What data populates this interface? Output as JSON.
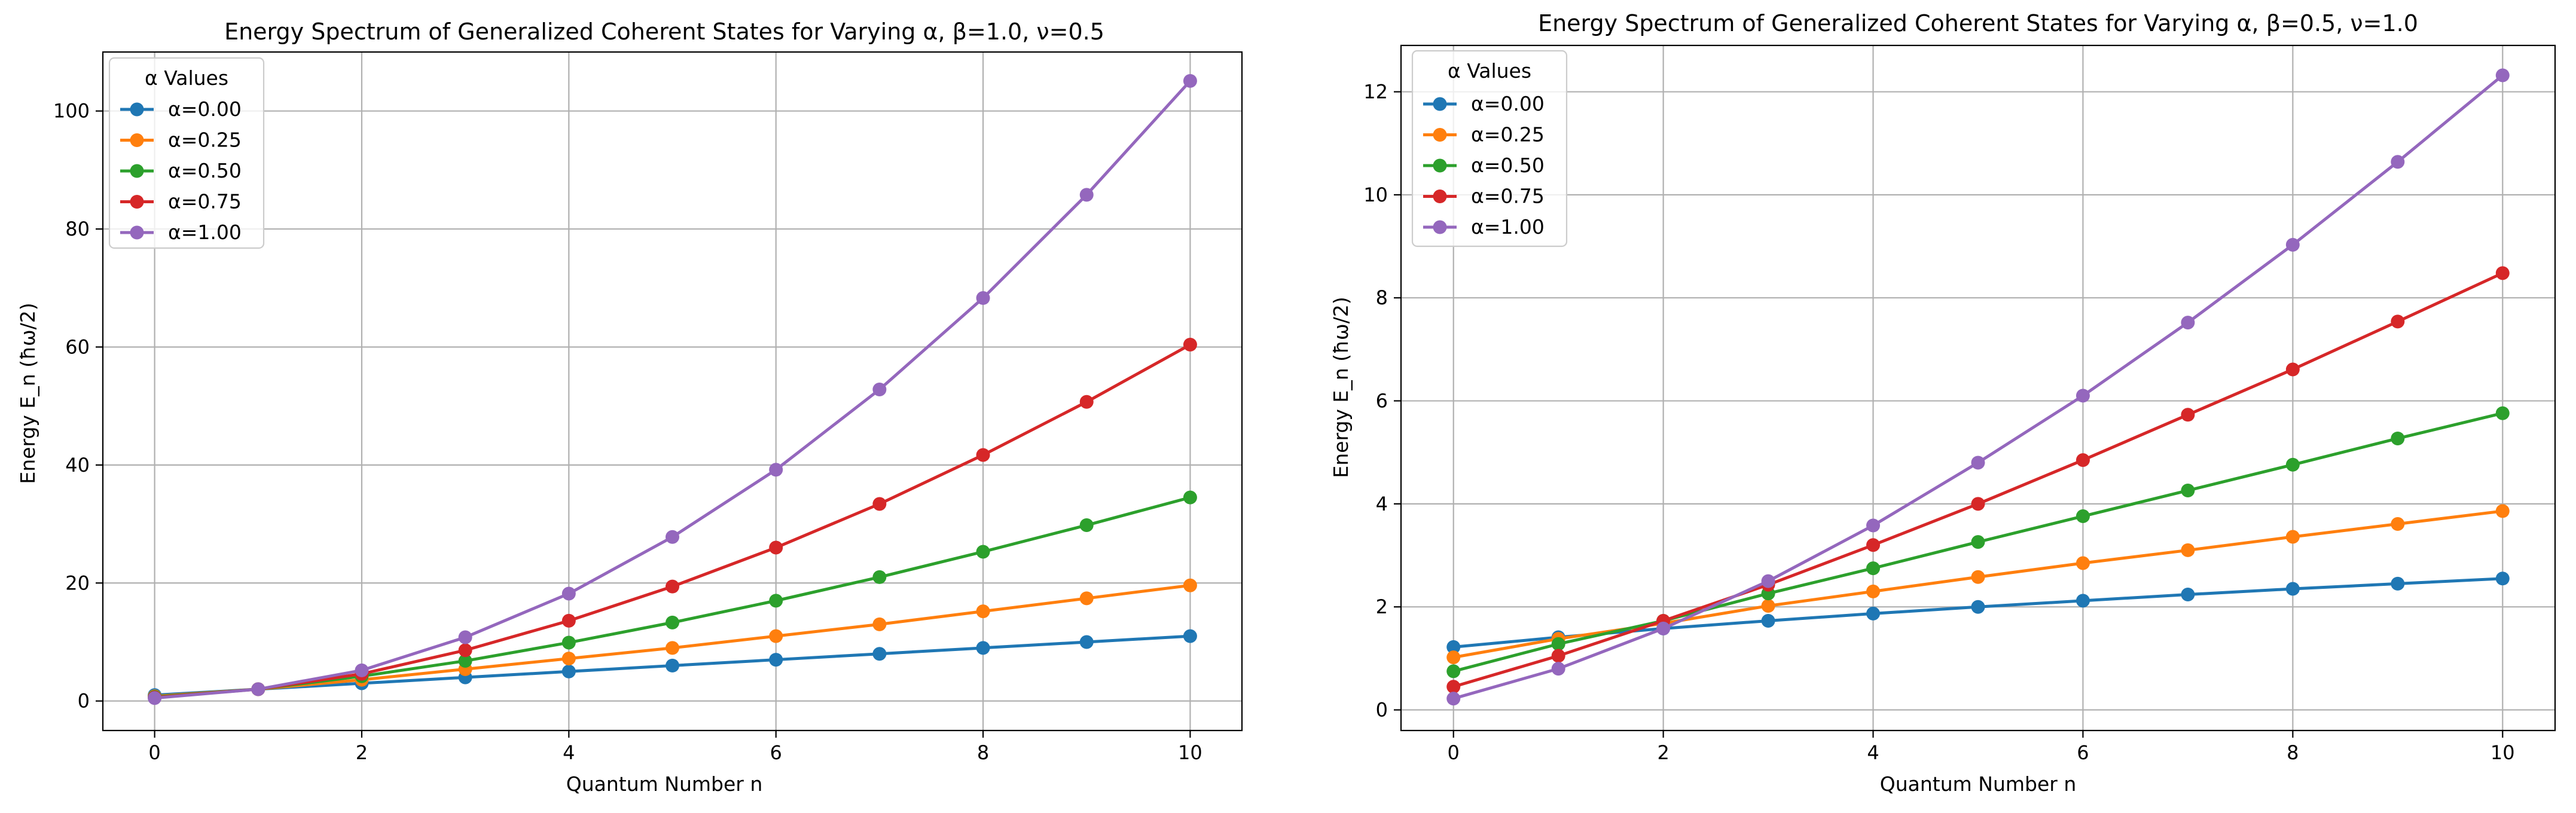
{
  "chart_data": [
    {
      "type": "line",
      "title": "Energy Spectrum of Generalized Coherent States for Varying α,  β=1.0, ν=0.5",
      "xlabel": "Quantum Number n",
      "ylabel": "Energy E_n (ħω/2)",
      "xlim": [
        -0.5,
        10.5
      ],
      "ylim": [
        -5,
        110
      ],
      "xticks": [
        0,
        2,
        4,
        6,
        8,
        10
      ],
      "yticks": [
        0,
        20,
        40,
        60,
        80,
        100
      ],
      "grid": true,
      "legend": {
        "title": "α Values",
        "position": "top-left"
      },
      "x": [
        0,
        1,
        2,
        3,
        4,
        5,
        6,
        7,
        8,
        9,
        10
      ],
      "series": [
        {
          "name": "α=0.00",
          "color": "#1f77b4",
          "values": [
            1.0,
            2.0,
            3.0,
            4.0,
            5.0,
            6.0,
            7.0,
            8.0,
            9.0,
            10.0,
            11.0
          ]
        },
        {
          "name": "α=0.25",
          "color": "#ff7f0e",
          "values": [
            0.8,
            2.0,
            3.6,
            5.4,
            7.2,
            9.0,
            11.0,
            13.0,
            15.2,
            17.4,
            19.6
          ]
        },
        {
          "name": "α=0.50",
          "color": "#2ca02c",
          "values": [
            0.7,
            2.0,
            4.2,
            6.8,
            9.9,
            13.3,
            17.0,
            21.0,
            25.3,
            29.8,
            34.5
          ]
        },
        {
          "name": "α=0.75",
          "color": "#d62728",
          "values": [
            0.6,
            2.0,
            4.6,
            8.6,
            13.6,
            19.4,
            26.0,
            33.4,
            41.7,
            50.7,
            60.4
          ]
        },
        {
          "name": "α=1.00",
          "color": "#9467bd",
          "values": [
            0.5,
            2.0,
            5.2,
            10.8,
            18.2,
            27.8,
            39.2,
            52.8,
            68.3,
            85.8,
            105.1
          ]
        }
      ]
    },
    {
      "type": "line",
      "title": "Energy Spectrum of Generalized Coherent States for Varying α,  β=0.5, ν=1.0",
      "xlabel": "Quantum Number n",
      "ylabel": "Energy E_n (ħω/2)",
      "xlim": [
        -0.5,
        10.5
      ],
      "ylim": [
        -0.4,
        12.9
      ],
      "xticks": [
        0,
        2,
        4,
        6,
        8,
        10
      ],
      "yticks": [
        0,
        2,
        4,
        6,
        8,
        10,
        12
      ],
      "grid": true,
      "legend": {
        "title": "α Values",
        "position": "top-left"
      },
      "x": [
        0,
        1,
        2,
        3,
        4,
        5,
        6,
        7,
        8,
        9,
        10
      ],
      "series": [
        {
          "name": "α=0.00",
          "color": "#1f77b4",
          "values": [
            1.22,
            1.41,
            1.58,
            1.73,
            1.87,
            2.0,
            2.12,
            2.24,
            2.35,
            2.45,
            2.55
          ]
        },
        {
          "name": "α=0.25",
          "color": "#ff7f0e",
          "values": [
            1.02,
            1.38,
            1.68,
            2.02,
            2.3,
            2.58,
            2.85,
            3.1,
            3.36,
            3.61,
            3.86
          ]
        },
        {
          "name": "α=0.50",
          "color": "#2ca02c",
          "values": [
            0.75,
            1.28,
            1.73,
            2.26,
            2.75,
            3.26,
            3.76,
            4.26,
            4.76,
            5.27,
            5.76
          ]
        },
        {
          "name": "α=0.75",
          "color": "#d62728",
          "values": [
            0.45,
            1.05,
            1.73,
            2.43,
            3.2,
            4.0,
            4.85,
            5.73,
            6.61,
            7.54,
            8.48
          ]
        },
        {
          "name": "α=1.00",
          "color": "#9467bd",
          "values": [
            0.22,
            0.8,
            1.58,
            2.5,
            3.58,
            4.8,
            6.1,
            7.52,
            9.03,
            10.64,
            12.32
          ]
        }
      ]
    }
  ]
}
